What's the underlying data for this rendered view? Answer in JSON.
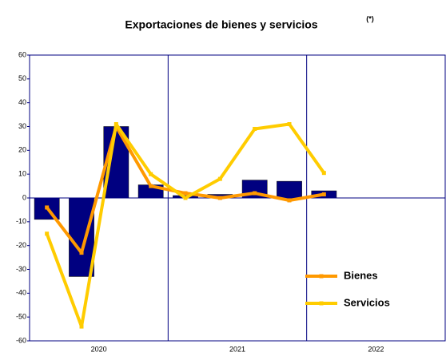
{
  "chart_data": {
    "type": "bar_line",
    "title": "Exportaciones de bienes y servicios",
    "title_note": "(*)",
    "year_labels": [
      "2020",
      "2021",
      "2022"
    ],
    "categories": [
      null,
      null,
      null,
      null,
      null,
      null,
      null,
      null,
      null,
      null,
      null,
      null
    ],
    "bar_series": {
      "color": "#000080",
      "values": [
        -9,
        -33,
        30,
        5.5,
        1,
        1.5,
        7.5,
        7,
        3,
        null,
        null,
        null
      ]
    },
    "series": [
      {
        "name": "Bienes",
        "color": "#ff9900",
        "values": [
          -4,
          -23,
          30,
          5,
          2,
          0,
          2,
          -1,
          1.5,
          null,
          null,
          null
        ]
      },
      {
        "name": "Servicios",
        "color": "#ffcc00",
        "values": [
          -15,
          -54,
          31,
          10,
          0,
          8,
          29,
          31,
          10.5,
          null,
          null,
          null
        ]
      }
    ],
    "ylim": [
      -60,
      60
    ],
    "yticks": [
      -60,
      -50,
      -40,
      -30,
      -20,
      -10,
      0,
      10,
      20,
      30,
      40,
      50,
      60
    ],
    "legend": "lower right"
  }
}
